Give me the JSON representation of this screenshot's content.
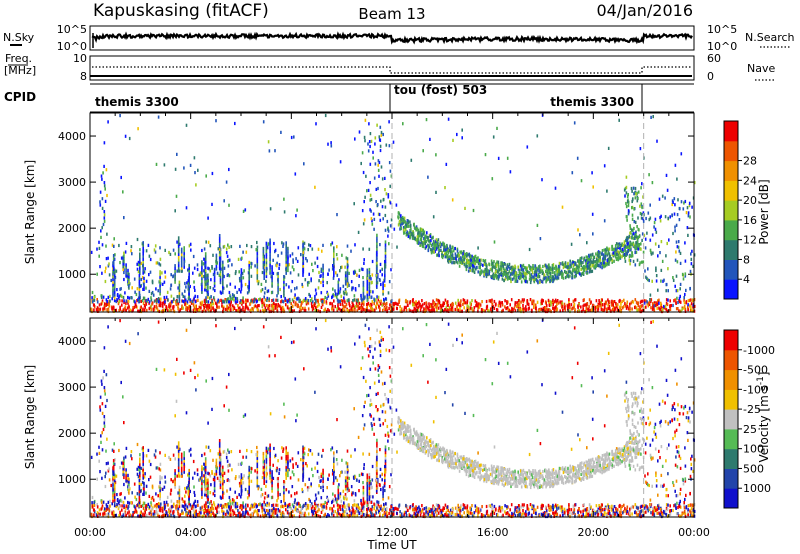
{
  "header": {
    "radar": "Kapuskasing (fitACF)",
    "beam": "Beam 13",
    "date": "04/Jan/2016"
  },
  "noise_panel": {
    "left_label": "N.Sky",
    "right_label": "N.Search",
    "left_ticks": [
      "10^5",
      "10^0"
    ],
    "right_ticks": [
      "10^5",
      "10^0"
    ]
  },
  "freq_panel": {
    "left_label_1": "Freq.",
    "left_label_2": "[MHz]",
    "right_label": "Nave",
    "left_ticks": [
      "10",
      "8"
    ],
    "right_ticks": [
      "60",
      "0"
    ]
  },
  "cpid": {
    "label": "CPID",
    "segments": [
      {
        "name": "themis 3300",
        "start_hour": 0,
        "end_hour": 12
      },
      {
        "name": "tou (fost) 503",
        "start_hour": 12,
        "end_hour": 22
      },
      {
        "name": "themis 3300",
        "start_hour": 22,
        "end_hour": 24
      }
    ]
  },
  "chart_data": [
    {
      "type": "heatmap",
      "name": "Power",
      "ylabel": "Slant Range [km]",
      "xlim": [
        0,
        24
      ],
      "ylim": [
        180,
        4500
      ],
      "yticks": [
        1000,
        2000,
        3000,
        4000
      ],
      "colorbar": {
        "label": "Power [dB]",
        "ticks": [
          "4",
          "8",
          "12",
          "16",
          "20",
          "24",
          "28"
        ],
        "colors": [
          "#0a14ff",
          "#2255bb",
          "#2e7a6e",
          "#4aaa4a",
          "#a6cc22",
          "#f0c000",
          "#f09000",
          "#ee5500",
          "#ee0000"
        ]
      },
      "features": [
        {
          "kind": "ground_scatter_band",
          "x": [
            0,
            24
          ],
          "range_km": [
            180,
            400
          ],
          "dominant": "red"
        },
        {
          "kind": "ionospheric_arc",
          "x": [
            12,
            22
          ],
          "range_km": [
            900,
            2200
          ],
          "dominant": "green"
        }
      ]
    },
    {
      "type": "heatmap",
      "name": "Velocity",
      "ylabel": "Slant Range [km]",
      "xlabel": "Time UT",
      "xlim": [
        0,
        24
      ],
      "ylim": [
        180,
        4500
      ],
      "yticks": [
        1000,
        2000,
        3000,
        4000
      ],
      "xticks": [
        "00:00",
        "04:00",
        "08:00",
        "12:00",
        "16:00",
        "20:00",
        "00:00"
      ],
      "colorbar": {
        "label": "Velocity [m s^-1]",
        "ticks": [
          "1000",
          "500",
          "100",
          "25",
          "-25",
          "-100",
          "-500",
          "-1000"
        ],
        "colors": [
          "#1010cc",
          "#2244aa",
          "#2e7a6e",
          "#55bb55",
          "#c0c0c0",
          "#f0c000",
          "#f09000",
          "#ee5500",
          "#ee0000"
        ]
      },
      "features": [
        {
          "kind": "ground_scatter_band",
          "x": [
            0,
            24
          ],
          "range_km": [
            180,
            400
          ],
          "dominant": "mixed"
        },
        {
          "kind": "ionospheric_arc",
          "x": [
            12,
            22
          ],
          "range_km": [
            900,
            2200
          ],
          "dominant": "grey"
        }
      ]
    }
  ]
}
